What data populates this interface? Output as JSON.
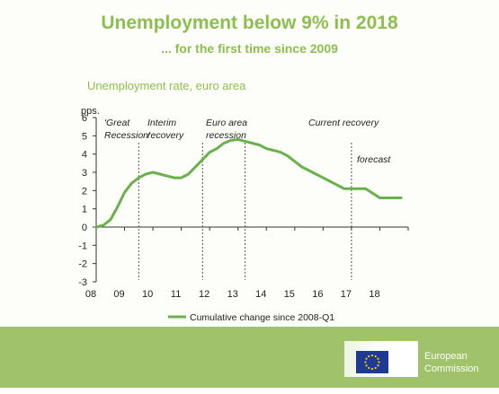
{
  "slide": {
    "title": "Unemployment below 9% in 2018",
    "subtitle": "... for the first time since 2009"
  },
  "footer": {
    "logo_line1": "European",
    "logo_line2": "Commission",
    "colors": {
      "band": "#9fc26b",
      "flag": "#1f3a93",
      "stars": "#ffcc00"
    }
  },
  "chart_data": {
    "type": "line",
    "title": "Unemployment rate, euro area",
    "ylabel": "pps.",
    "ylim": [
      -3,
      6
    ],
    "yticks": [
      -3,
      -2,
      -1,
      0,
      1,
      2,
      3,
      4,
      5,
      6
    ],
    "xlim": [
      2008,
      2019
    ],
    "xticks": [
      "08",
      "09",
      "10",
      "11",
      "12",
      "13",
      "14",
      "15",
      "16",
      "17",
      "18"
    ],
    "grid": false,
    "legend": "bottom",
    "line_color": "#6ab04c",
    "series": [
      {
        "name": "Cumulative change since 2008-Q1",
        "x": [
          2008.0,
          2008.25,
          2008.5,
          2008.75,
          2009.0,
          2009.25,
          2009.5,
          2009.75,
          2010.0,
          2010.25,
          2010.5,
          2010.75,
          2011.0,
          2011.25,
          2011.5,
          2011.75,
          2012.0,
          2012.25,
          2012.5,
          2012.75,
          2013.0,
          2013.25,
          2013.5,
          2013.75,
          2014.0,
          2014.25,
          2014.5,
          2014.75,
          2015.0,
          2015.25,
          2015.5,
          2015.75,
          2016.0,
          2016.25,
          2016.5,
          2016.75,
          2017.0,
          2017.5,
          2018.0,
          2018.25,
          2018.5,
          2018.75
        ],
        "values": [
          0.0,
          0.1,
          0.4,
          1.1,
          1.9,
          2.4,
          2.7,
          2.9,
          3.0,
          2.9,
          2.8,
          2.7,
          2.7,
          2.9,
          3.3,
          3.7,
          4.1,
          4.3,
          4.6,
          4.75,
          4.8,
          4.7,
          4.6,
          4.5,
          4.3,
          4.2,
          4.1,
          3.9,
          3.6,
          3.3,
          3.1,
          2.9,
          2.7,
          2.5,
          2.3,
          2.1,
          2.1,
          2.1,
          1.6,
          1.6,
          1.6,
          1.6
        ]
      }
    ],
    "phases": [
      {
        "label_lines": [
          "'Great",
          "Recession'"
        ],
        "start": 2008.0
      },
      {
        "label_lines": [
          "Interim",
          "recovery"
        ],
        "start": 2009.5
      },
      {
        "label_lines": [
          "Euro area",
          "recession"
        ],
        "start": 2011.75
      },
      {
        "label_lines": [
          "Current recovery"
        ],
        "start": 2013.25
      },
      {
        "label_lines": [
          "forecast"
        ],
        "start": 2017.0
      }
    ],
    "dividers": [
      2009.5,
      2011.75,
      2013.25,
      2017.0
    ]
  }
}
